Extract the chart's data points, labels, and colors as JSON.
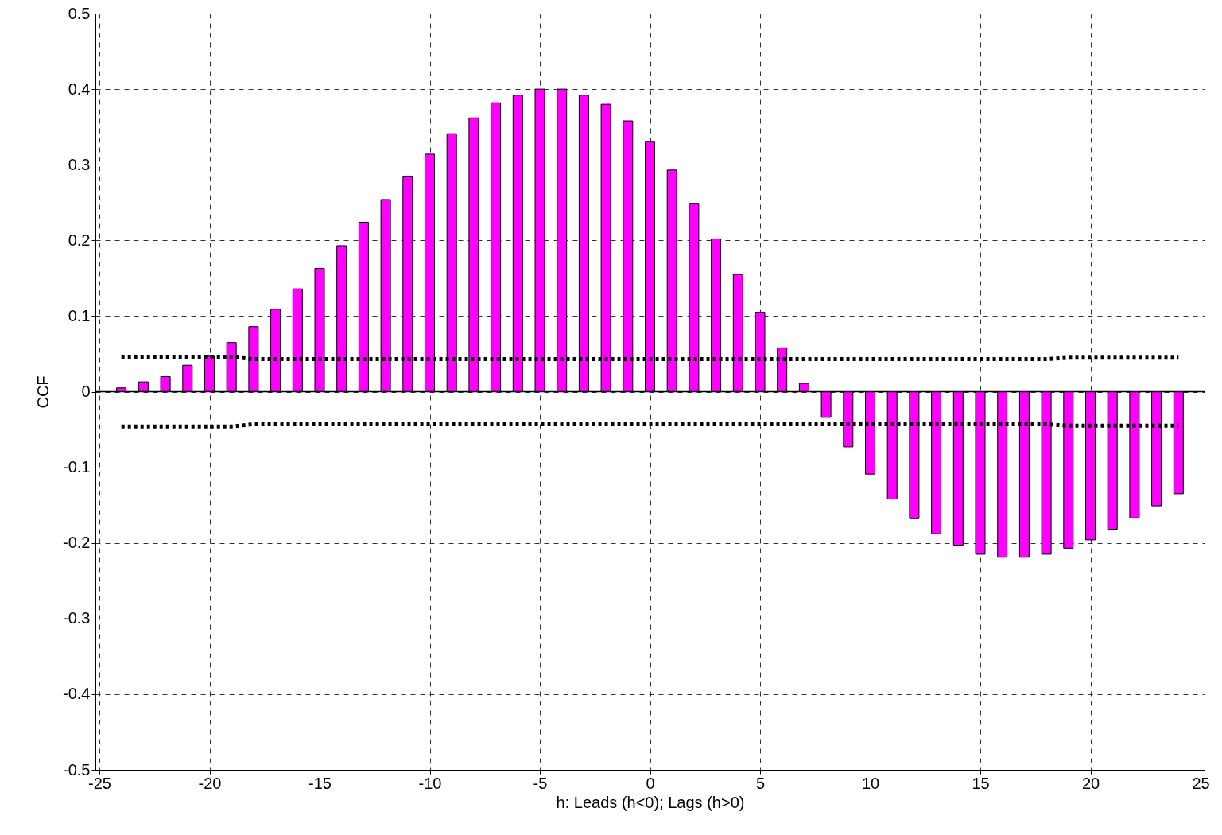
{
  "chart_data": {
    "type": "bar",
    "xlabel": "h: Leads (h<0); Lags (h>0)",
    "ylabel": "CCF",
    "x": [
      -24,
      -23,
      -22,
      -21,
      -20,
      -19,
      -18,
      -17,
      -16,
      -15,
      -14,
      -13,
      -12,
      -11,
      -10,
      -9,
      -8,
      -7,
      -6,
      -5,
      -4,
      -3,
      -2,
      -1,
      0,
      1,
      2,
      3,
      4,
      5,
      6,
      7,
      8,
      9,
      10,
      11,
      12,
      13,
      14,
      15,
      16,
      17,
      18,
      19,
      20,
      21,
      22,
      23,
      24
    ],
    "series": [
      {
        "color": "#ff00ff",
        "values": [
          0.005,
          0.013,
          0.02,
          0.035,
          0.047,
          0.065,
          0.086,
          0.109,
          0.136,
          0.163,
          0.193,
          0.224,
          0.254,
          0.285,
          0.314,
          0.341,
          0.362,
          0.382,
          0.392,
          0.4,
          0.4,
          0.392,
          0.38,
          0.358,
          0.331,
          0.293,
          0.249,
          0.202,
          0.155,
          0.105,
          0.058,
          0.011,
          -0.034,
          -0.073,
          -0.109,
          -0.142,
          -0.168,
          -0.188,
          -0.203,
          -0.215,
          -0.219,
          -0.219,
          -0.215,
          -0.207,
          -0.196,
          -0.182,
          -0.167,
          -0.151,
          -0.135
        ]
      },
      {
        "type": "line",
        "color": "#000000",
        "line_style": "dotted",
        "x": [
          -24,
          -19,
          -18,
          18,
          19,
          24
        ],
        "values": [
          0.046,
          0.046,
          0.043,
          0.043,
          0.045,
          0.045
        ]
      },
      {
        "type": "line",
        "color": "#000000",
        "line_style": "dotted",
        "x": [
          -24,
          -19,
          -18,
          18,
          19,
          24
        ],
        "values": [
          -0.046,
          -0.046,
          -0.043,
          -0.043,
          -0.045,
          -0.045
        ]
      }
    ],
    "xlim": [
      -25,
      25
    ],
    "xticks": [
      -25,
      -20,
      -15,
      -10,
      -5,
      0,
      5,
      10,
      15,
      20,
      25
    ],
    "ylim": [
      -0.5,
      0.5
    ],
    "yticks": [
      -0.5,
      -0.4,
      -0.3,
      -0.2,
      -0.1,
      0,
      0.1,
      0.2,
      0.3,
      0.4,
      0.5
    ],
    "grid": true
  }
}
